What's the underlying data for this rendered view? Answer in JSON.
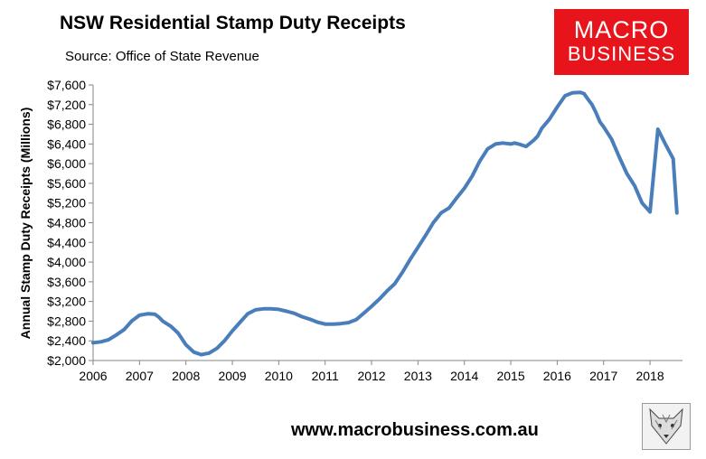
{
  "header": {
    "title": "NSW Residential Stamp Duty Receipts",
    "subtitle": "Source: Office of State Revenue"
  },
  "logo": {
    "line1": "MACRO",
    "line2": "BUSINESS",
    "color": "#e8141b"
  },
  "footer": {
    "url": "www.macrobusiness.com.au"
  },
  "mascot": {
    "icon": "fox-head-illustration"
  },
  "chart_data": {
    "type": "line",
    "title": "NSW Residential Stamp Duty Receipts",
    "ylabel": "Annual Stamp Duty Receipts (Millions)",
    "xlabel": "",
    "xlim": [
      2006,
      2018.7
    ],
    "ylim": [
      2000,
      7600
    ],
    "grid": false,
    "legend": "none",
    "line_color": "#4a7ebb",
    "x_ticks": [
      "2006",
      "2007",
      "2008",
      "2009",
      "2010",
      "2011",
      "2012",
      "2013",
      "2014",
      "2015",
      "2016",
      "2017",
      "2018"
    ],
    "y_ticks": [
      "$2,000",
      "$2,400",
      "$2,800",
      "$3,200",
      "$3,600",
      "$4,000",
      "$4,400",
      "$4,800",
      "$5,200",
      "$5,600",
      "$6,000",
      "$6,400",
      "$6,800",
      "$7,200",
      "$7,600"
    ],
    "series": [
      {
        "x": [
          2006.0,
          2006.17,
          2006.33,
          2006.5,
          2006.67,
          2006.83,
          2007.0,
          2007.17,
          2007.33,
          2007.42,
          2007.5,
          2007.67,
          2007.83,
          2008.0,
          2008.17,
          2008.33,
          2008.5,
          2008.67,
          2008.83,
          2009.0,
          2009.17,
          2009.33,
          2009.5,
          2009.67,
          2009.83,
          2010.0,
          2010.17,
          2010.33,
          2010.5,
          2010.67,
          2010.83,
          2011.0,
          2011.17,
          2011.33,
          2011.5,
          2011.67,
          2011.83,
          2012.0,
          2012.17,
          2012.33,
          2012.5,
          2012.67,
          2012.83,
          2013.0,
          2013.17,
          2013.33,
          2013.5,
          2013.67,
          2013.83,
          2014.0,
          2014.17,
          2014.33,
          2014.5,
          2014.67,
          2014.83,
          2015.0,
          2015.08,
          2015.17,
          2015.33,
          2015.5,
          2015.58,
          2015.67,
          2015.83,
          2016.0,
          2016.17,
          2016.33,
          2016.5,
          2016.58,
          2016.67,
          2016.75,
          2016.83,
          2016.92,
          2017.0,
          2017.17,
          2017.33,
          2017.5,
          2017.67,
          2017.83,
          2018.0,
          2018.17,
          2018.33,
          2018.5,
          2018.58
        ],
        "y": [
          2360,
          2380,
          2420,
          2520,
          2630,
          2800,
          2920,
          2950,
          2940,
          2880,
          2800,
          2700,
          2560,
          2320,
          2170,
          2120,
          2150,
          2250,
          2400,
          2600,
          2780,
          2950,
          3030,
          3050,
          3050,
          3040,
          3000,
          2960,
          2890,
          2840,
          2780,
          2740,
          2740,
          2750,
          2770,
          2830,
          2960,
          3100,
          3250,
          3410,
          3560,
          3800,
          4050,
          4300,
          4550,
          4800,
          5000,
          5100,
          5300,
          5500,
          5750,
          6050,
          6300,
          6400,
          6420,
          6400,
          6420,
          6400,
          6350,
          6480,
          6560,
          6720,
          6900,
          7150,
          7380,
          7440,
          7450,
          7420,
          7300,
          7200,
          7050,
          6850,
          6750,
          6500,
          6150,
          5800,
          5550,
          5200,
          5020,
          6700,
          6400,
          6100,
          5000
        ]
      }
    ]
  }
}
